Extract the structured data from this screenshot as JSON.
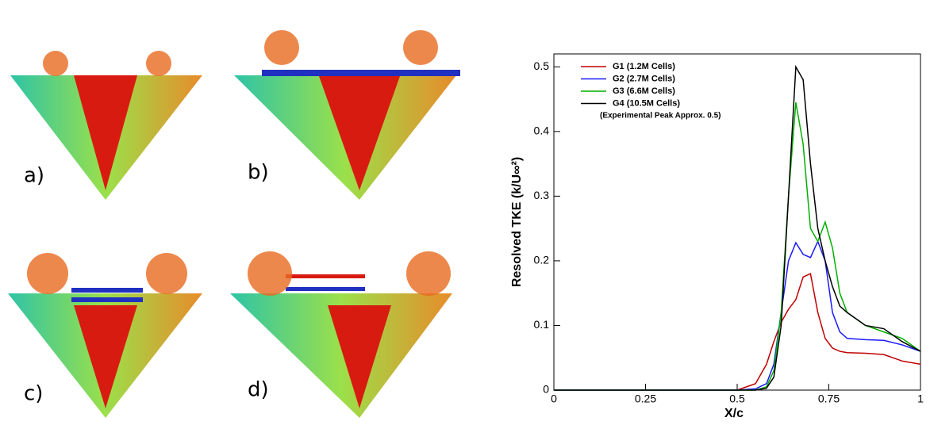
{
  "panels": [
    "a)",
    "b)",
    "c)",
    "d)"
  ],
  "chart_data": {
    "type": "line",
    "x_label": "X/c",
    "y_label": "Resolved TKE (k/U∞²)",
    "annotation": "(Experimental Peak Approx. 0.5)",
    "x": [
      0,
      0.5,
      0.55,
      0.58,
      0.6,
      0.62,
      0.64,
      0.66,
      0.68,
      0.7,
      0.72,
      0.74,
      0.76,
      0.78,
      0.8,
      0.85,
      0.9,
      0.95,
      1
    ],
    "series": [
      {
        "name": "G1 (1.2M Cells)",
        "color": "#c00000",
        "values": [
          0,
          0,
          0.01,
          0.04,
          0.075,
          0.105,
          0.125,
          0.14,
          0.175,
          0.18,
          0.12,
          0.08,
          0.065,
          0.06,
          0.058,
          0.057,
          0.055,
          0.045,
          0.04
        ]
      },
      {
        "name": "G2 (2.7M Cells)",
        "color": "#1a1aff",
        "values": [
          0,
          0,
          0.002,
          0.01,
          0.04,
          0.12,
          0.2,
          0.228,
          0.21,
          0.205,
          0.23,
          0.2,
          0.12,
          0.09,
          0.08,
          0.078,
          0.077,
          0.07,
          0.06
        ]
      },
      {
        "name": "G3 (6.6M Cells)",
        "color": "#00b000",
        "values": [
          0,
          0,
          0,
          0.005,
          0.03,
          0.12,
          0.3,
          0.445,
          0.38,
          0.25,
          0.23,
          0.26,
          0.22,
          0.15,
          0.12,
          0.1,
          0.09,
          0.08,
          0.06
        ]
      },
      {
        "name": "G4 (10.5M Cells)",
        "color": "#000000",
        "values": [
          0,
          0,
          0,
          0.003,
          0.02,
          0.1,
          0.3,
          0.5,
          0.48,
          0.35,
          0.25,
          0.2,
          0.16,
          0.13,
          0.12,
          0.1,
          0.095,
          0.075,
          0.06
        ]
      }
    ],
    "xlim": [
      0,
      1
    ],
    "ylim": [
      0,
      0.52
    ],
    "xticks": [
      0,
      0.25,
      0.5,
      0.75,
      1
    ],
    "yticks": [
      0,
      0.1,
      0.2,
      0.3,
      0.4,
      0.5
    ],
    "legend": "upper-left"
  }
}
